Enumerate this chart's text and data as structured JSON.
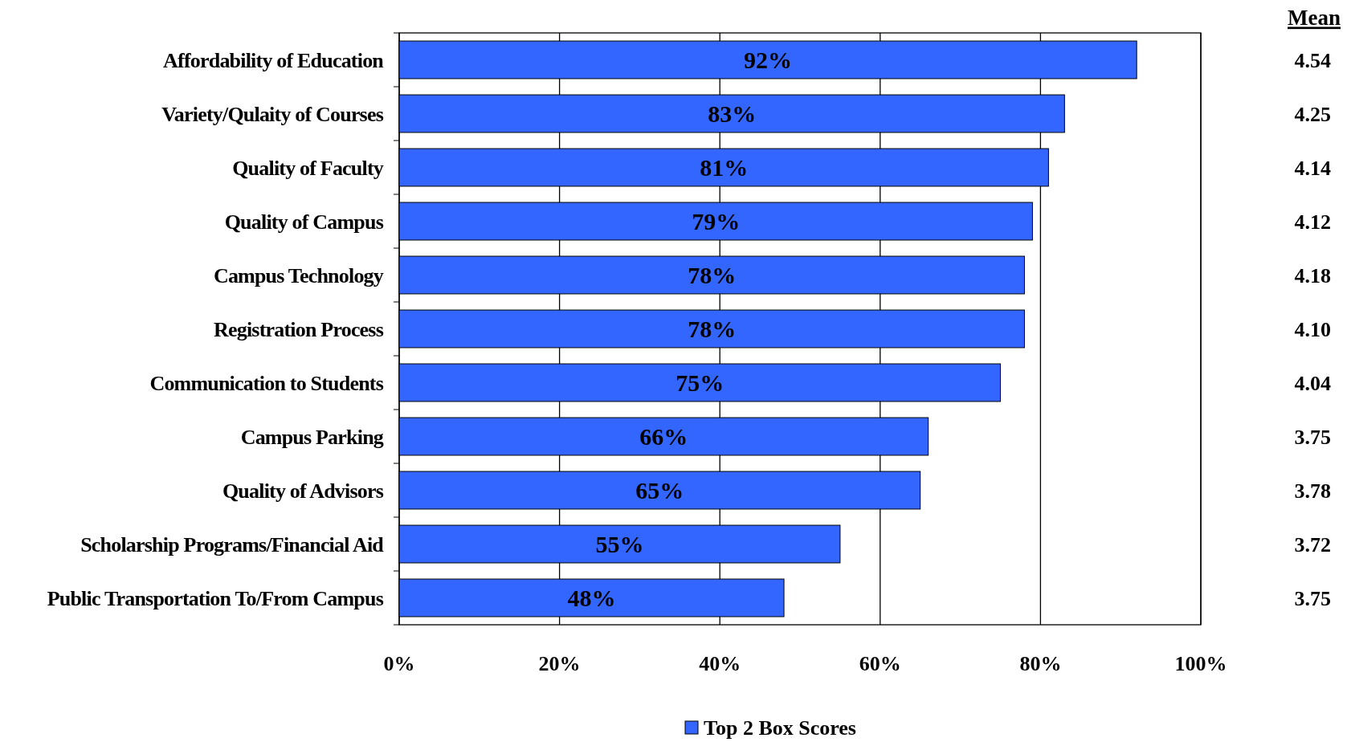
{
  "chart_data": {
    "type": "bar",
    "orientation": "horizontal",
    "categories": [
      "Affordability of Education",
      "Variety/Qulaity of Courses",
      "Quality of Faculty",
      "Quality of Campus",
      "Campus Technology",
      "Registration Process",
      "Communication to Students",
      "Campus Parking",
      "Quality of Advisors",
      "Scholarship Programs/Financial Aid",
      "Public Transportation To/From Campus"
    ],
    "series": [
      {
        "name": "Top 2 Box Scores",
        "color": "#3366ff",
        "values": [
          92,
          83,
          81,
          79,
          78,
          78,
          75,
          66,
          65,
          55,
          48
        ],
        "value_labels": [
          "92%",
          "83%",
          "81%",
          "79%",
          "78%",
          "78%",
          "75%",
          "66%",
          "65%",
          "55%",
          "48%"
        ]
      }
    ],
    "xlim": [
      0,
      100
    ],
    "xticks": [
      {
        "value": 0,
        "label": "0%"
      },
      {
        "value": 20,
        "label": "20%"
      },
      {
        "value": 40,
        "label": "40%"
      },
      {
        "value": 60,
        "label": "60%"
      },
      {
        "value": 80,
        "label": "80%"
      },
      {
        "value": 100,
        "label": "100%"
      }
    ],
    "grid": "x",
    "legend": "bottom",
    "annotations": [
      "Mean",
      "4.54",
      "4.25",
      "4.14",
      "4.12",
      "4.18",
      "4.10",
      "4.04",
      "3.75",
      "3.78",
      "3.72",
      "3.75"
    ]
  }
}
